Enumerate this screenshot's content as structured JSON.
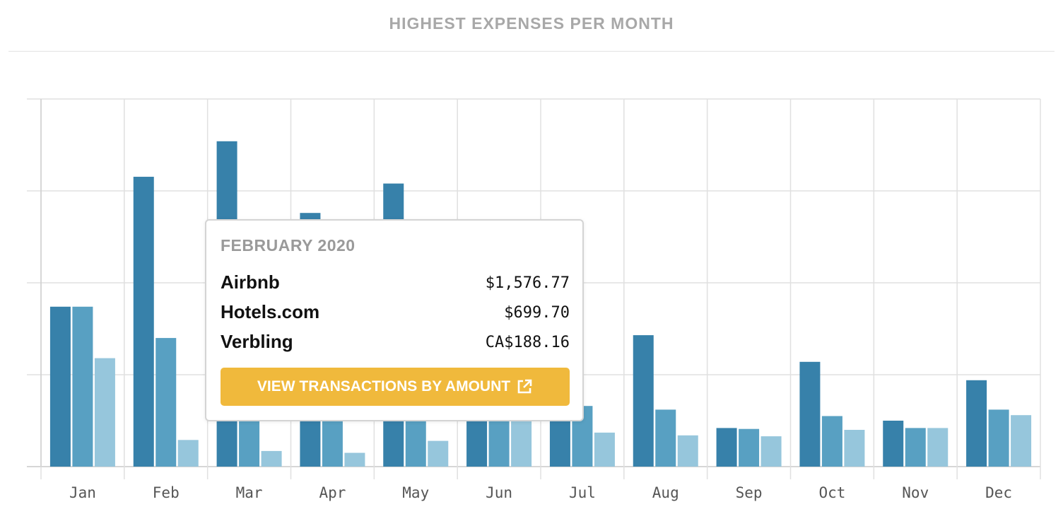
{
  "header": {
    "title": "HIGHEST EXPENSES PER MONTH"
  },
  "tooltip": {
    "heading": "FEBRUARY 2020",
    "rows": [
      {
        "name": "Airbnb",
        "amount": "$1,576.77"
      },
      {
        "name": "Hotels.com",
        "amount": "$699.70"
      },
      {
        "name": "Verbling",
        "amount": "CA$188.16"
      }
    ],
    "button_label": "VIEW TRANSACTIONS BY AMOUNT",
    "button_icon": "external-link-icon"
  },
  "colors": {
    "series": [
      "#3781aa",
      "#58a0c2",
      "#96c6dc"
    ],
    "button": "#f0b93c",
    "title": "#a8a8a8"
  },
  "chart_data": {
    "type": "bar",
    "categories": [
      "Jan",
      "Feb",
      "Mar",
      "Apr",
      "May",
      "Jun",
      "Jul",
      "Aug",
      "Sep",
      "Oct",
      "Nov",
      "Dec"
    ],
    "series": [
      {
        "values": [
          870,
          1576.77,
          1770,
          1380,
          1540,
          400,
          400,
          715,
          210,
          570,
          250,
          470
        ]
      },
      {
        "values": [
          870,
          699.7,
          260,
          260,
          260,
          260,
          330,
          310,
          205,
          275,
          210,
          310
        ]
      },
      {
        "values": [
          590,
          145,
          85,
          75,
          140,
          260,
          185,
          170,
          165,
          200,
          210,
          280
        ]
      }
    ],
    "ylim": [
      0,
      2000
    ],
    "y_gridlines": [
      0,
      500,
      1000,
      1500,
      2000
    ],
    "y_tick_labels_shown": false,
    "grid": true,
    "legend": "none"
  }
}
